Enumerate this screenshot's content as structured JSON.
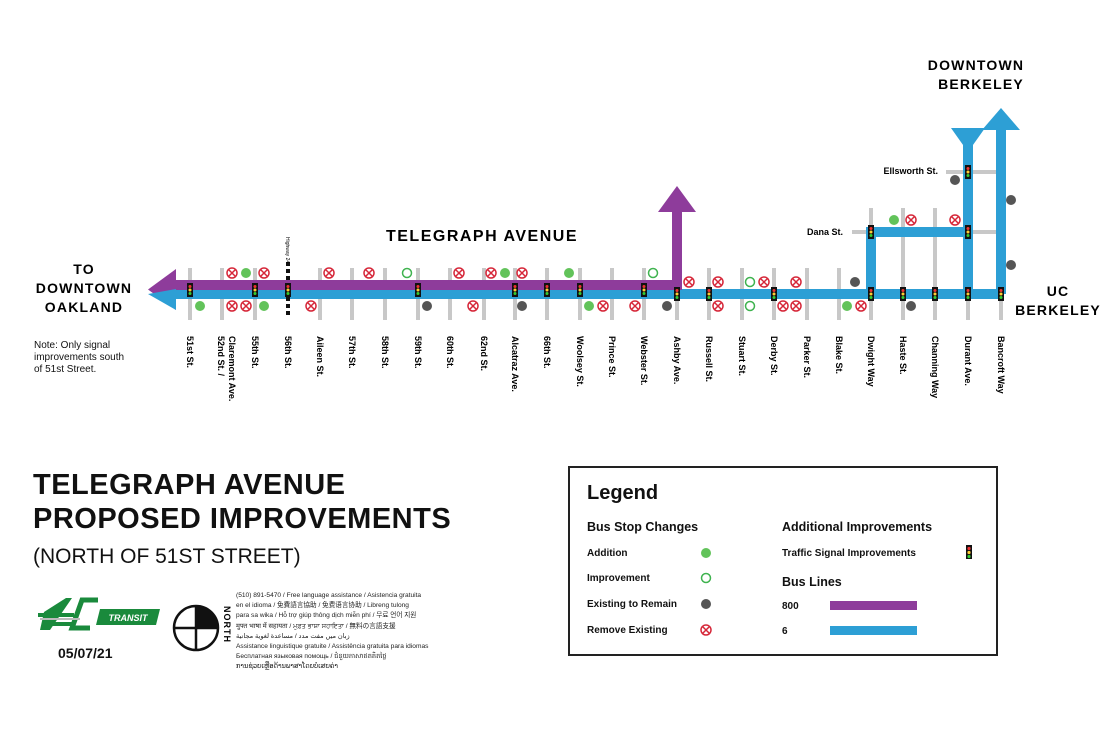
{
  "map": {
    "street_title": "TELEGRAPH AVENUE",
    "downtown_oakland": [
      "TO",
      "DOWNTOWN",
      "OAKLAND"
    ],
    "downtown_berkeley": [
      "DOWNTOWN",
      "BERKELEY"
    ],
    "uc_berkeley": [
      "UC",
      "BERKELEY"
    ],
    "highway_label": "Highway 24",
    "ellsworth": "Ellsworth St.",
    "dana": "Dana St.",
    "note": [
      "Note: Only signal",
      "improvements south",
      "of 51st Street."
    ],
    "streets": [
      {
        "name": "51st St."
      },
      {
        "name": "52nd St. / Claremont Ave."
      },
      {
        "name": "55th St."
      },
      {
        "name": "56th St."
      },
      {
        "name": "Aileen St."
      },
      {
        "name": "57th St."
      },
      {
        "name": "58th St."
      },
      {
        "name": "59th St."
      },
      {
        "name": "60th St."
      },
      {
        "name": "62nd St."
      },
      {
        "name": "Alcatraz Ave."
      },
      {
        "name": "66th St."
      },
      {
        "name": "Woolsey St."
      },
      {
        "name": "Prince St."
      },
      {
        "name": "Webster St."
      },
      {
        "name": "Ashby Ave."
      },
      {
        "name": "Russell St."
      },
      {
        "name": "Stuart St."
      },
      {
        "name": "Derby St."
      },
      {
        "name": "Parker St."
      },
      {
        "name": "Blake St."
      },
      {
        "name": "Dwight Way"
      },
      {
        "name": "Haste St."
      },
      {
        "name": "Channing Way"
      },
      {
        "name": "Durant Ave."
      },
      {
        "name": "Bancroft Way"
      }
    ]
  },
  "title": {
    "line1": "TELEGRAPH AVENUE",
    "line2": "PROPOSED IMPROVEMENTS",
    "subtitle": "(NORTH OF 51ST STREET)"
  },
  "date": "05/07/21",
  "logo_text": "TRANSIT",
  "north_label": "NORTH",
  "language_assistance": [
    "(510) 891-5470 / Free language assistance / Asistencia gratuita",
    "en el idioma / 免費語言協助 / 免费语言协助 / Libreng tulong",
    "para sa wika / Hỗ trợ giúp thông dịch miễn phí / 무료 언어 지원",
    "मुफ्त भाषा में सहायता / ਮੁਫ਼ਤ ਭਾਸ਼ਾ ਸਹਾਇਤਾ / 無料の言語支援",
    "زبان میں مفت مدد / مساعدة لغوية مجانية",
    "Assistance linguistique gratuite / Assistência gratuita para idiomas",
    "Бесплатная языковая помощь / ជំនួយភាសាឥតគិតថ្លៃ",
    "ການຊ່ວຍເຫຼືອດ້ານພາສາໂດຍບໍ່ເສຍຄ່າ"
  ],
  "legend": {
    "title": "Legend",
    "bus_stop_heading": "Bus Stop Changes",
    "stop_items": [
      "Addition",
      "Improvement",
      "Existing to Remain",
      "Remove Existing"
    ],
    "additional_heading": "Additional Improvements",
    "signal_label": "Traffic Signal Improvements",
    "bus_lines_heading": "Bus Lines",
    "line_800": "800",
    "line_6": "6"
  },
  "colors": {
    "purple_800": "#8e3c9b",
    "blue_6": "#2d9fd5",
    "addition_green": "#62c35a",
    "improvement_green": "#3fb34f",
    "existing_gray": "#555555",
    "remove_red": "#d6283a",
    "street_gray": "#c8c8c8"
  }
}
